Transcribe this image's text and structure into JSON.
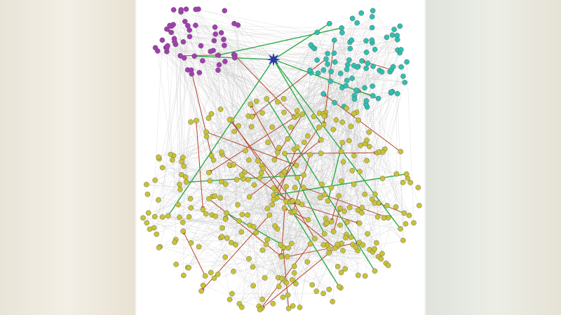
{
  "diagram": {
    "type": "network-graph",
    "clusters": [
      {
        "color": "#a23fb0"
      },
      {
        "color": "#2ec0b0"
      },
      {
        "color": "#c8c236"
      }
    ],
    "hub": {
      "shape": "star",
      "color": "#2a3aa8"
    },
    "edge_colors": {
      "background": "#c8c8c8",
      "directed": "#b5452a",
      "highlight": "#2faa4a"
    }
  }
}
